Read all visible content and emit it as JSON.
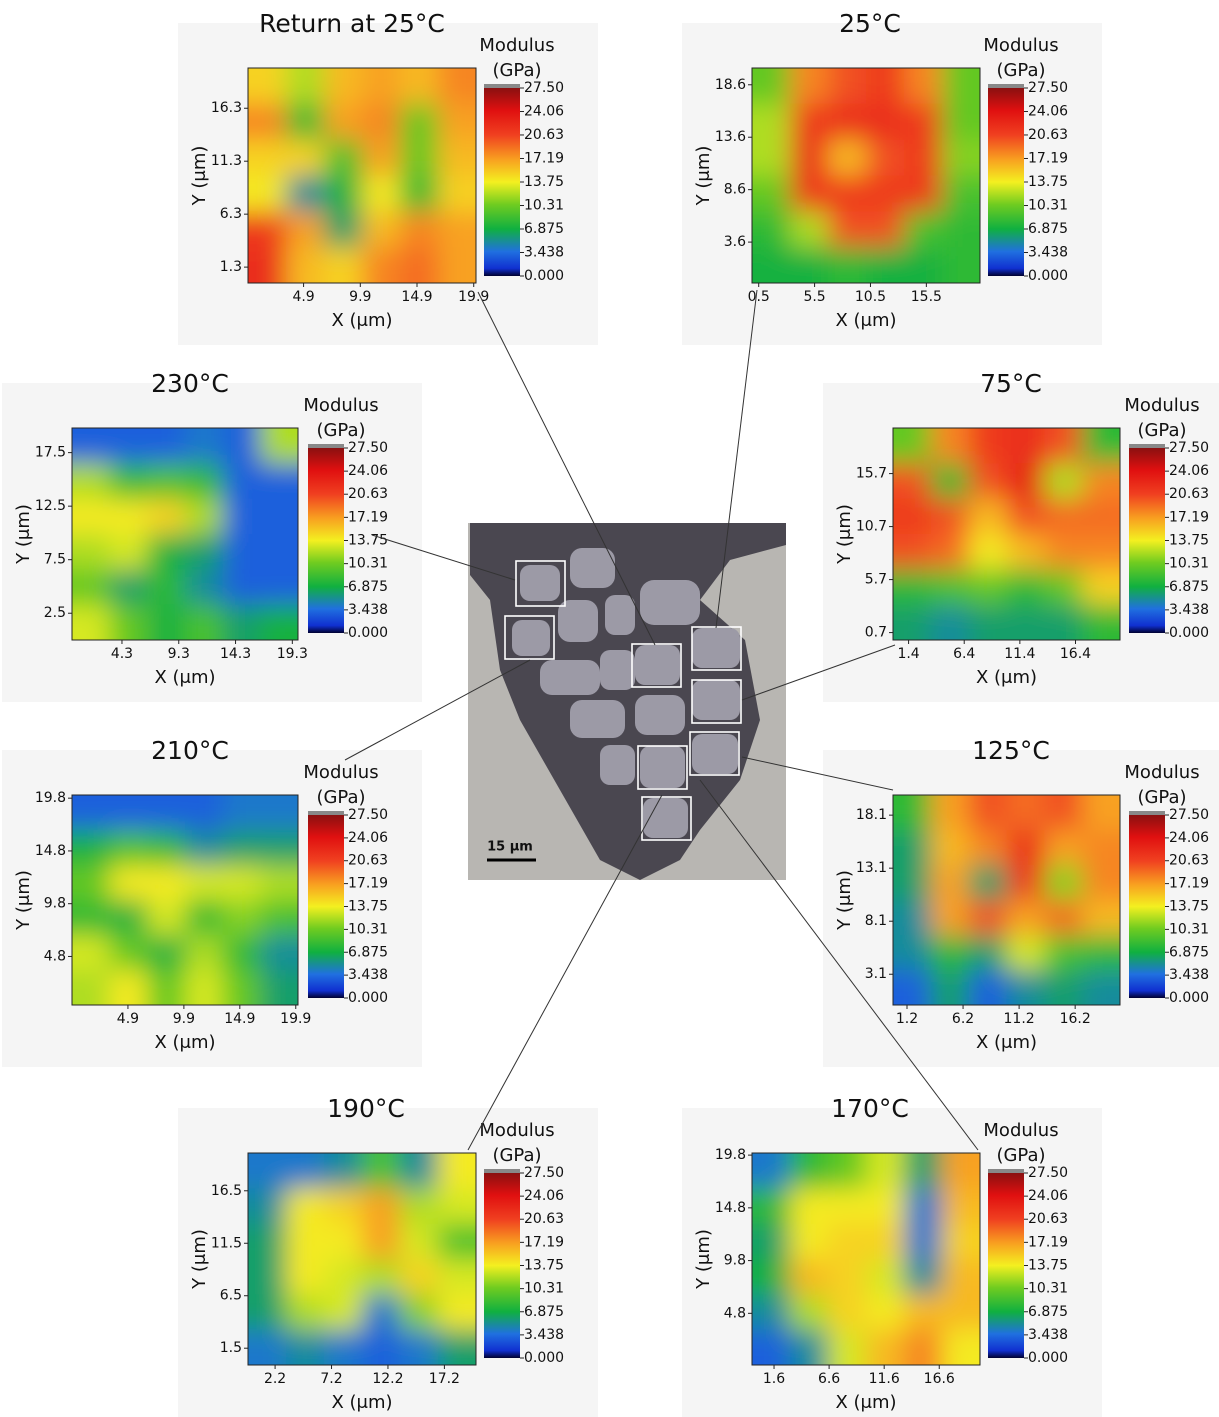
{
  "chart_data": [
    {
      "type": "heatmap",
      "title": "Return at 25°C",
      "xlabel": "X (μm)",
      "ylabel": "Y (μm)",
      "colorbar_title": "Modulus",
      "colorbar_unit": "(GPa)",
      "xlim": [
        0,
        20.1
      ],
      "ylim": [
        -0.2,
        20.1
      ],
      "xticks": [
        4.9,
        9.9,
        14.9,
        19.9
      ],
      "yticks": [
        1.3,
        6.3,
        11.3,
        16.3
      ],
      "zlim": [
        0,
        27.5
      ],
      "zticks": [
        {
          "value": 0,
          "label": "0.000"
        },
        3.438,
        6.875,
        10.31,
        13.75,
        17.19,
        20.63,
        24.06,
        {
          "value": 27.5,
          "label": "27.50"
        }
      ],
      "values": [
        [
          15,
          12,
          16,
          17,
          16,
          18
        ],
        [
          18,
          8,
          17,
          18,
          10,
          17
        ],
        [
          15,
          15,
          9,
          17,
          10,
          16
        ],
        [
          14,
          5,
          7,
          14,
          8,
          15
        ],
        [
          21,
          17,
          6,
          16,
          18,
          17
        ],
        [
          22,
          16,
          15,
          18,
          19,
          17
        ]
      ]
    },
    {
      "type": "heatmap",
      "title": "25°C",
      "xlabel": "X (μm)",
      "ylabel": "Y (μm)",
      "colorbar_title": "Modulus",
      "colorbar_unit": "(GPa)",
      "xlim": [
        -0.1,
        20.3
      ],
      "ylim": [
        -0.3,
        20.2
      ],
      "xticks": [
        0.5,
        5.5,
        10.5,
        15.5
      ],
      "yticks": [
        3.6,
        8.6,
        13.6,
        18.6
      ],
      "zlim": [
        0,
        27.5
      ],
      "zticks": [
        {
          "value": 0,
          "label": "0.000"
        },
        3.438,
        6.875,
        10.31,
        13.75,
        17.19,
        20.63,
        24.06,
        {
          "value": 27.5,
          "label": "27.50"
        }
      ],
      "values": [
        [
          10,
          18,
          20,
          21,
          18,
          10
        ],
        [
          12,
          21,
          22,
          22,
          21,
          10
        ],
        [
          12,
          22,
          16,
          20,
          21,
          11
        ],
        [
          10,
          21,
          21,
          21,
          21,
          9
        ],
        [
          8,
          12,
          20,
          20,
          9,
          8
        ],
        [
          7,
          7,
          8,
          7,
          7,
          8
        ]
      ]
    },
    {
      "type": "heatmap",
      "title": "230°C",
      "xlabel": "X (μm)",
      "ylabel": "Y (μm)",
      "colorbar_title": "Modulus",
      "colorbar_unit": "(GPa)",
      "xlim": [
        -0.1,
        19.8
      ],
      "ylim": [
        0,
        19.8
      ],
      "xticks": [
        4.3,
        9.3,
        14.3,
        19.3
      ],
      "yticks": [
        2.5,
        7.5,
        12.5,
        17.5
      ],
      "zlim": [
        0,
        27.5
      ],
      "zticks": [
        {
          "value": 0,
          "label": "0.000"
        },
        3.438,
        6.875,
        10.31,
        13.75,
        17.19,
        20.63,
        24.06,
        {
          "value": 27.5,
          "label": "27.50"
        }
      ],
      "values": [
        [
          3,
          3,
          3,
          4,
          3,
          12
        ],
        [
          12,
          8,
          9,
          8,
          3,
          3
        ],
        [
          14,
          14,
          15,
          12,
          3,
          3
        ],
        [
          12,
          13,
          7,
          6,
          3,
          3
        ],
        [
          10,
          6,
          8,
          5,
          3,
          3
        ],
        [
          13,
          10,
          7,
          9,
          6,
          7
        ]
      ]
    },
    {
      "type": "heatmap",
      "title": "75°C",
      "xlabel": "X (μm)",
      "ylabel": "Y (μm)",
      "colorbar_title": "Modulus",
      "colorbar_unit": "(GPa)",
      "xlim": [
        0,
        20.4
      ],
      "ylim": [
        0,
        20
      ],
      "xticks": [
        1.4,
        6.4,
        11.4,
        16.4
      ],
      "yticks": [
        0.7,
        5.7,
        10.7,
        15.7
      ],
      "zlim": [
        0,
        27.5
      ],
      "zticks": [
        {
          "value": 0,
          "label": "0.000"
        },
        3.438,
        6.875,
        10.31,
        13.75,
        17.19,
        20.63,
        24.06,
        {
          "value": 27.5,
          "label": "27.50"
        }
      ],
      "values": [
        [
          10,
          18,
          21,
          22,
          20,
          8
        ],
        [
          20,
          8,
          20,
          23,
          12,
          18
        ],
        [
          21,
          20,
          16,
          20,
          19,
          19
        ],
        [
          20,
          19,
          14,
          16,
          18,
          18
        ],
        [
          8,
          9,
          10,
          8,
          10,
          15
        ],
        [
          6,
          5,
          6,
          6,
          6,
          8
        ]
      ]
    },
    {
      "type": "heatmap",
      "title": "210°C",
      "xlabel": "X (μm)",
      "ylabel": "Y (μm)",
      "colorbar_title": "Modulus",
      "colorbar_unit": "(GPa)",
      "xlim": [
        -0.1,
        20.1
      ],
      "ylim": [
        0.2,
        20.1
      ],
      "xticks": [
        4.9,
        9.9,
        14.9,
        19.9
      ],
      "yticks": [
        4.8,
        9.8,
        14.8,
        19.8
      ],
      "zlim": [
        0,
        27.5
      ],
      "zticks": [
        {
          "value": 0,
          "label": "0.000"
        },
        3.438,
        6.875,
        10.31,
        13.75,
        17.19,
        20.63,
        24.06,
        {
          "value": 27.5,
          "label": "27.50"
        }
      ],
      "values": [
        [
          3,
          3,
          3,
          3,
          4,
          4
        ],
        [
          7,
          9,
          8,
          5,
          6,
          6
        ],
        [
          10,
          14,
          14,
          13,
          13,
          12
        ],
        [
          8,
          7,
          13,
          8,
          11,
          9
        ],
        [
          13,
          10,
          7,
          12,
          8,
          5
        ],
        [
          12,
          14,
          10,
          13,
          10,
          6
        ]
      ]
    },
    {
      "type": "heatmap",
      "title": "125°C",
      "xlabel": "X (μm)",
      "ylabel": "Y (μm)",
      "colorbar_title": "Modulus",
      "colorbar_unit": "(GPa)",
      "xlim": [
        -0.05,
        20.2
      ],
      "ylim": [
        0.2,
        20
      ],
      "xticks": [
        1.2,
        6.2,
        11.2,
        16.2
      ],
      "yticks": [
        3.1,
        8.1,
        13.1,
        18.1
      ],
      "zlim": [
        0,
        27.5
      ],
      "zticks": [
        {
          "value": 0,
          "label": "0.000"
        },
        3.438,
        6.875,
        10.31,
        13.75,
        17.19,
        20.63,
        24.06,
        {
          "value": 27.5,
          "label": "27.50"
        }
      ],
      "values": [
        [
          8,
          17,
          20,
          19,
          20,
          17
        ],
        [
          6,
          16,
          18,
          22,
          17,
          18
        ],
        [
          6,
          17,
          6,
          21,
          11,
          18
        ],
        [
          5,
          17,
          20,
          17,
          19,
          16
        ],
        [
          5,
          8,
          6,
          13,
          9,
          8
        ],
        [
          3,
          6,
          3,
          5,
          6,
          5
        ]
      ]
    },
    {
      "type": "heatmap",
      "title": "190°C",
      "xlabel": "X (μm)",
      "ylabel": "Y (μm)",
      "colorbar_title": "Modulus",
      "colorbar_unit": "(GPa)",
      "xlim": [
        -0.2,
        20
      ],
      "ylim": [
        -0.1,
        20.1
      ],
      "xticks": [
        2.2,
        7.2,
        12.2,
        17.2
      ],
      "yticks": [
        1.5,
        6.5,
        11.5,
        16.5
      ],
      "zlim": [
        0,
        27.5
      ],
      "zticks": [
        {
          "value": 0,
          "label": "0.000"
        },
        3.438,
        6.875,
        10.31,
        13.75,
        17.19,
        20.63,
        24.06,
        {
          "value": 27.5,
          "label": "27.50"
        }
      ],
      "values": [
        [
          4,
          4,
          5,
          9,
          5,
          14
        ],
        [
          5,
          14,
          15,
          17,
          12,
          13
        ],
        [
          6,
          14,
          14,
          17,
          13,
          9
        ],
        [
          6,
          14,
          13,
          12,
          15,
          13
        ],
        [
          6,
          12,
          13,
          4,
          11,
          14
        ],
        [
          4,
          5,
          4,
          3,
          4,
          6
        ]
      ]
    },
    {
      "type": "heatmap",
      "title": "170°C",
      "xlabel": "X (μm)",
      "ylabel": "Y (μm)",
      "colorbar_title": "Modulus",
      "colorbar_unit": "(GPa)",
      "xlim": [
        -0.4,
        20.3
      ],
      "ylim": [
        -0.1,
        20
      ],
      "xticks": [
        1.6,
        6.6,
        11.6,
        16.6
      ],
      "yticks": [
        4.8,
        9.8,
        14.8,
        19.8
      ],
      "zlim": [
        0,
        27.5
      ],
      "zticks": [
        {
          "value": 0,
          "label": "0.000"
        },
        3.438,
        6.875,
        10.31,
        13.75,
        17.19,
        20.63,
        24.06,
        {
          "value": 27.5,
          "label": "27.50"
        }
      ],
      "values": [
        [
          4,
          8,
          10,
          13,
          6,
          17
        ],
        [
          8,
          14,
          14,
          14,
          4,
          16
        ],
        [
          6,
          14,
          15,
          15,
          4,
          15
        ],
        [
          7,
          16,
          15,
          13,
          5,
          16
        ],
        [
          5,
          12,
          15,
          14,
          16,
          16
        ],
        [
          3,
          5,
          13,
          16,
          18,
          14
        ]
      ]
    }
  ],
  "micrograph": {
    "scale_bar_label": "15 μm"
  }
}
